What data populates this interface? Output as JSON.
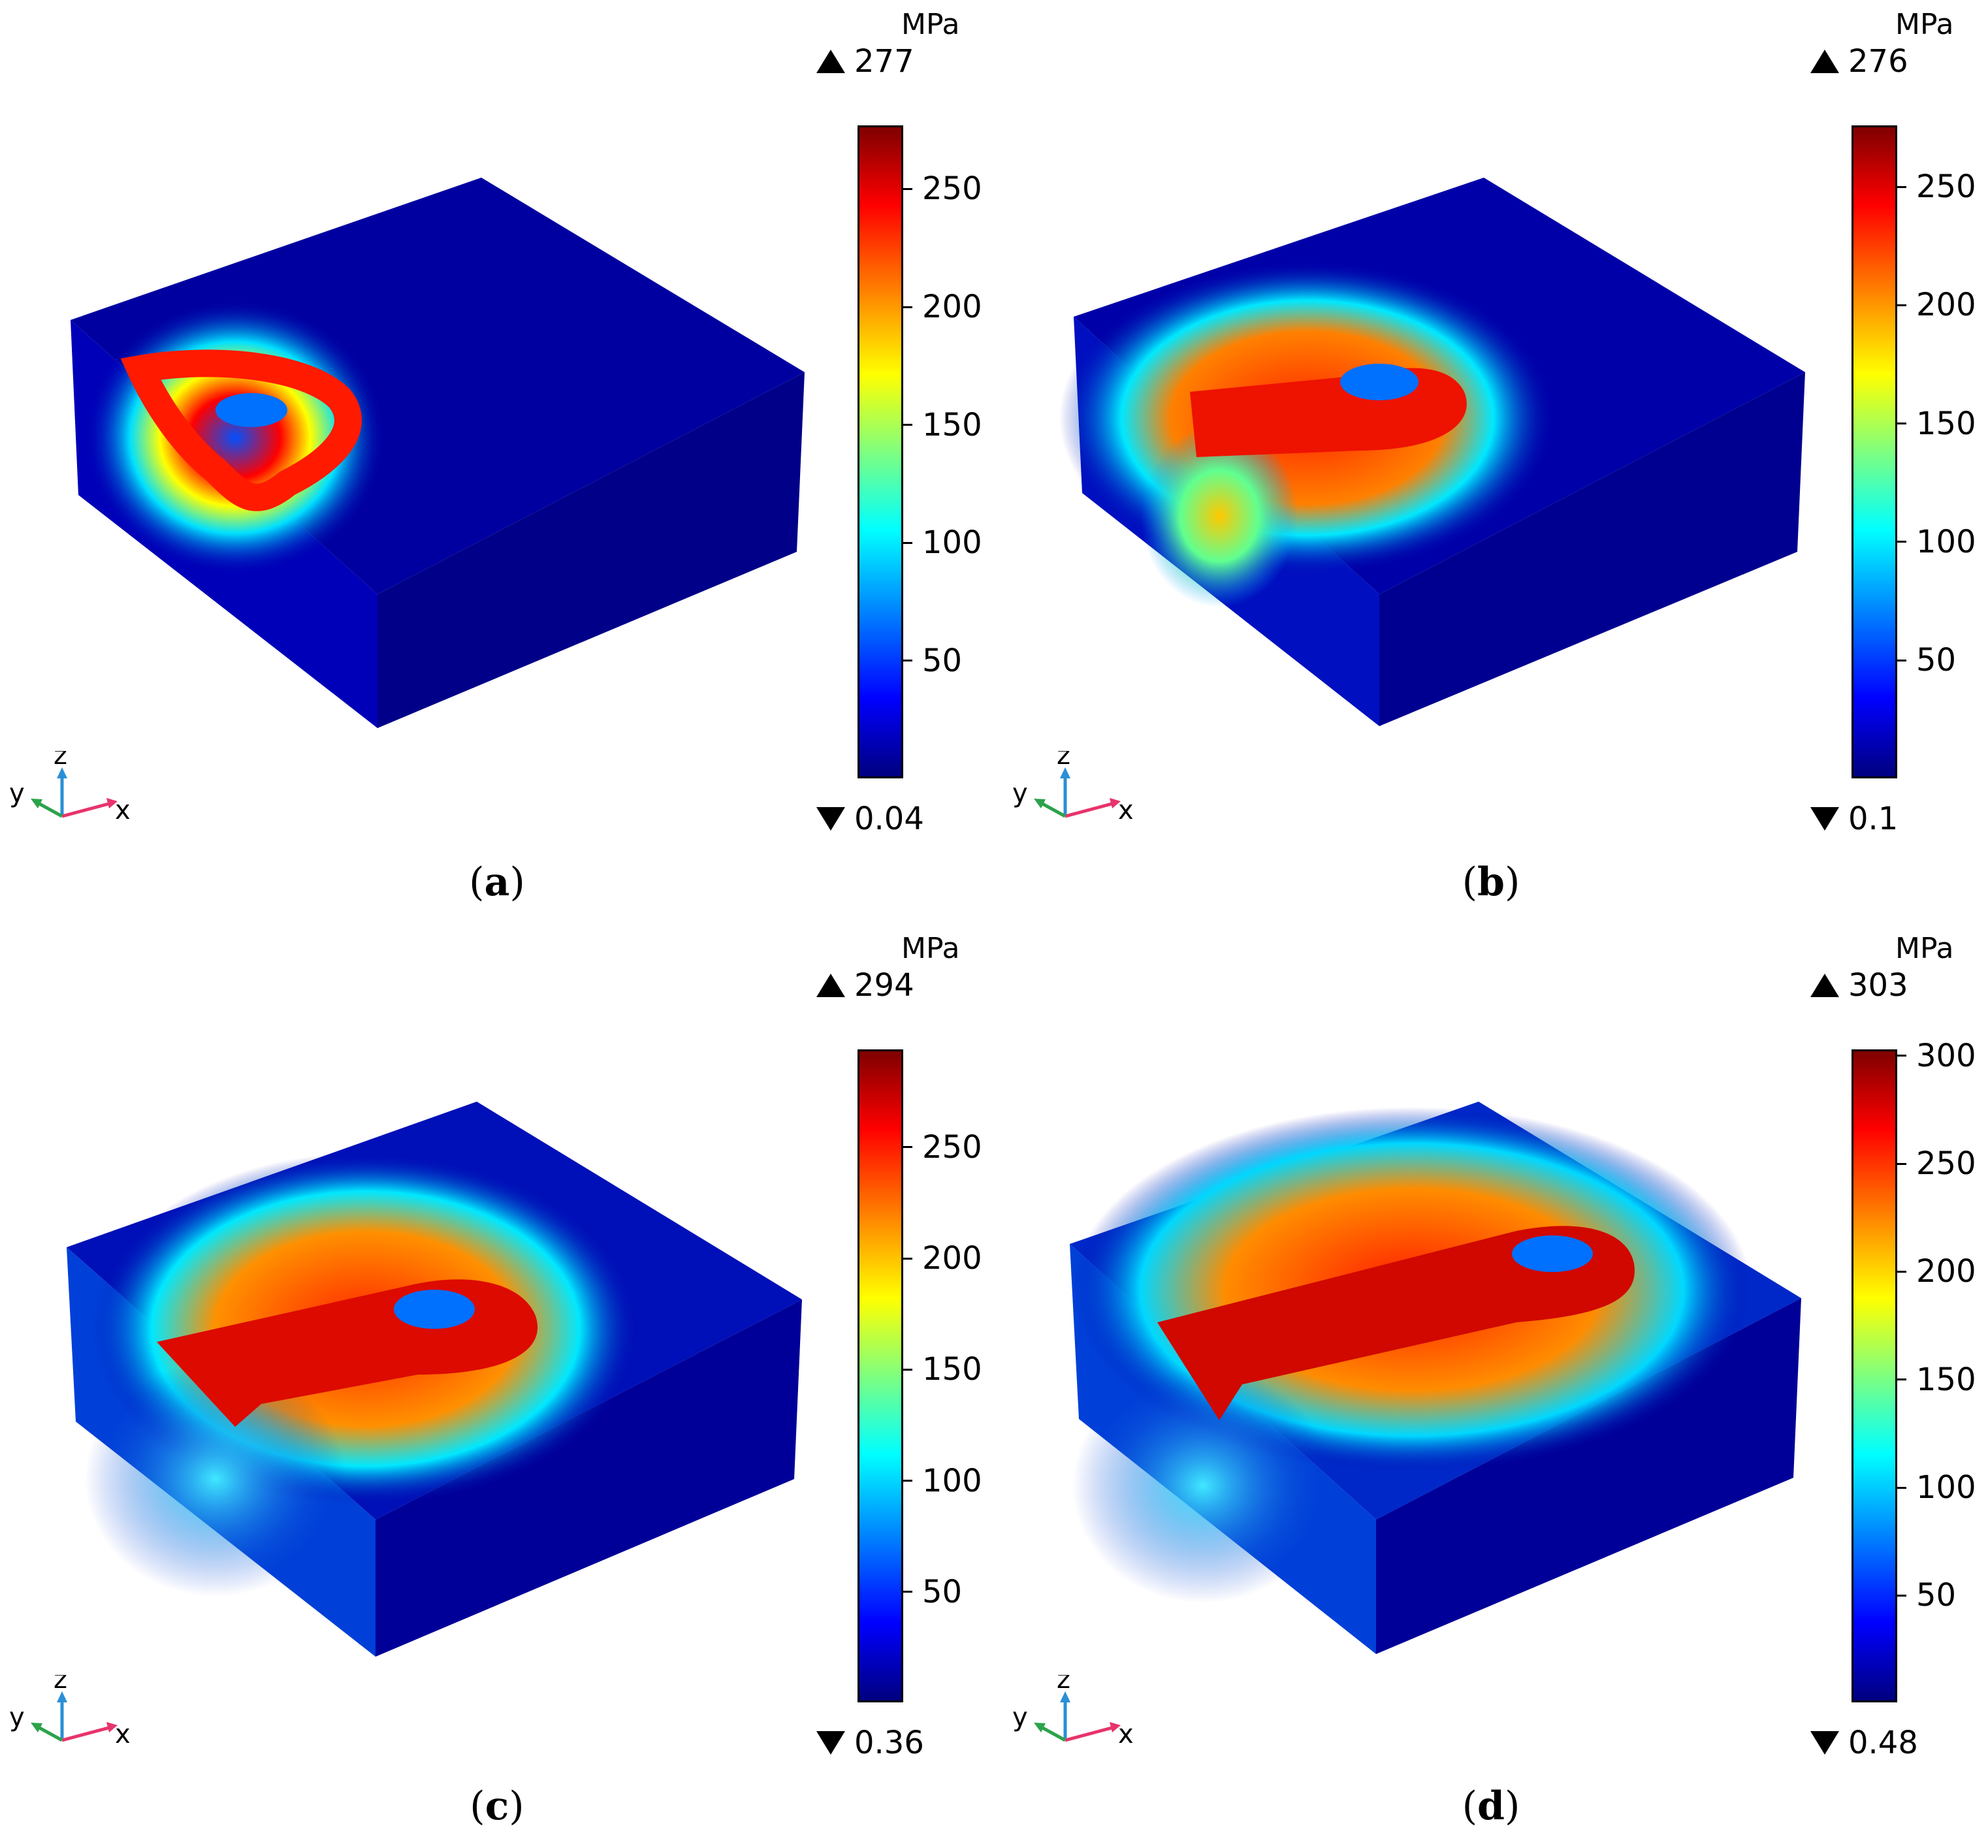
{
  "panels": [
    {
      "id": "a",
      "caption_letter": "a",
      "unit": "MPa",
      "max": "277",
      "min": "0.04",
      "ticks": [
        "250",
        "200",
        "150",
        "100",
        "50"
      ],
      "tick_values": [
        250,
        200,
        150,
        100,
        50
      ],
      "scale_max": 277,
      "scale_min": 0.04,
      "axes": {
        "x": "x",
        "y": "y",
        "z": "z"
      }
    },
    {
      "id": "b",
      "caption_letter": "b",
      "unit": "MPa",
      "max": "276",
      "min": "0.1",
      "ticks": [
        "250",
        "200",
        "150",
        "100",
        "50"
      ],
      "tick_values": [
        250,
        200,
        150,
        100,
        50
      ],
      "scale_max": 276,
      "scale_min": 0.1,
      "axes": {
        "x": "x",
        "y": "y",
        "z": "z"
      }
    },
    {
      "id": "c",
      "caption_letter": "c",
      "unit": "MPa",
      "max": "294",
      "min": "0.36",
      "ticks": [
        "250",
        "200",
        "150",
        "100",
        "50"
      ],
      "tick_values": [
        250,
        200,
        150,
        100,
        50
      ],
      "scale_max": 294,
      "scale_min": 0.36,
      "axes": {
        "x": "x",
        "y": "y",
        "z": "z"
      }
    },
    {
      "id": "d",
      "caption_letter": "d",
      "unit": "MPa",
      "max": "303",
      "min": "0.48",
      "ticks": [
        "300",
        "250",
        "200",
        "150",
        "100",
        "50"
      ],
      "tick_values": [
        300,
        250,
        200,
        150,
        100,
        50
      ],
      "scale_max": 303,
      "scale_min": 0.48,
      "axes": {
        "x": "x",
        "y": "y",
        "z": "z"
      }
    }
  ],
  "colormap": [
    "#00007f",
    "#0000ff",
    "#007fff",
    "#00ffff",
    "#7fff7f",
    "#ffff00",
    "#ff7f00",
    "#ff0000",
    "#7f0000"
  ]
}
